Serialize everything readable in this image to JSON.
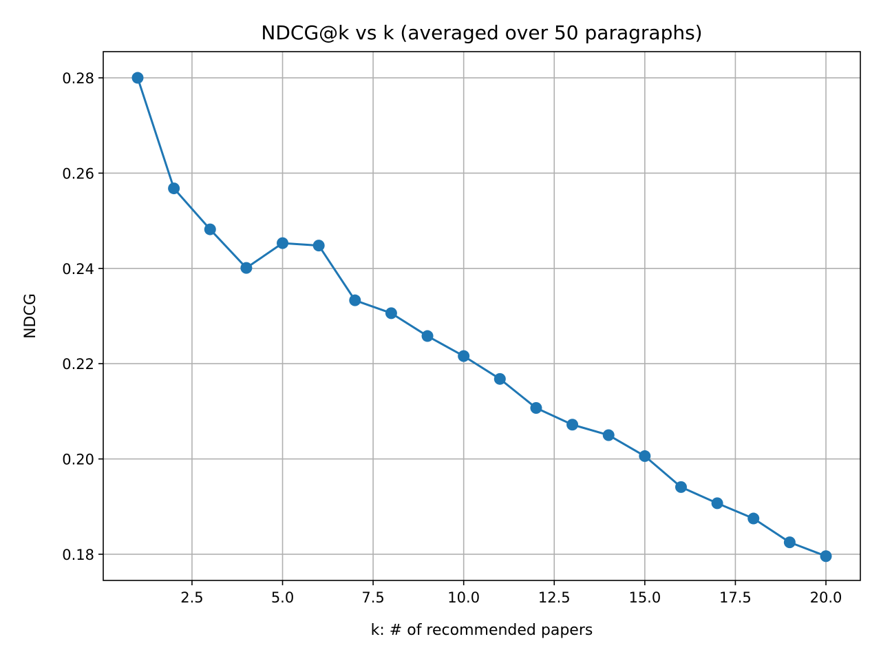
{
  "chart_data": {
    "type": "line",
    "title": "NDCG@k vs k  (averaged over 50 paragraphs)",
    "xlabel": "k: # of recommended papers",
    "ylabel": "NDCG",
    "xlim": [
      0.05,
      20.95
    ],
    "ylim": [
      0.1745,
      0.2855
    ],
    "x_ticks": [
      2.5,
      5.0,
      7.5,
      10.0,
      12.5,
      15.0,
      17.5,
      20.0
    ],
    "x_tick_labels": [
      "2.5",
      "5.0",
      "7.5",
      "10.0",
      "12.5",
      "15.0",
      "17.5",
      "20.0"
    ],
    "y_ticks": [
      0.18,
      0.2,
      0.22,
      0.24,
      0.26,
      0.28
    ],
    "y_tick_labels": [
      "0.18",
      "0.20",
      "0.22",
      "0.24",
      "0.26",
      "0.28"
    ],
    "grid": true,
    "series": [
      {
        "color": "#1f77b4",
        "marker": "circle",
        "x": [
          1,
          2,
          3,
          4,
          5,
          6,
          7,
          8,
          9,
          10,
          11,
          12,
          13,
          14,
          15,
          16,
          17,
          18,
          19,
          20
        ],
        "y": [
          0.28,
          0.2568,
          0.2482,
          0.2401,
          0.2453,
          0.2448,
          0.2333,
          0.2306,
          0.2258,
          0.2216,
          0.2168,
          0.2107,
          0.2072,
          0.205,
          0.2006,
          0.1941,
          0.1907,
          0.1875,
          0.1825,
          0.1796
        ]
      }
    ]
  }
}
